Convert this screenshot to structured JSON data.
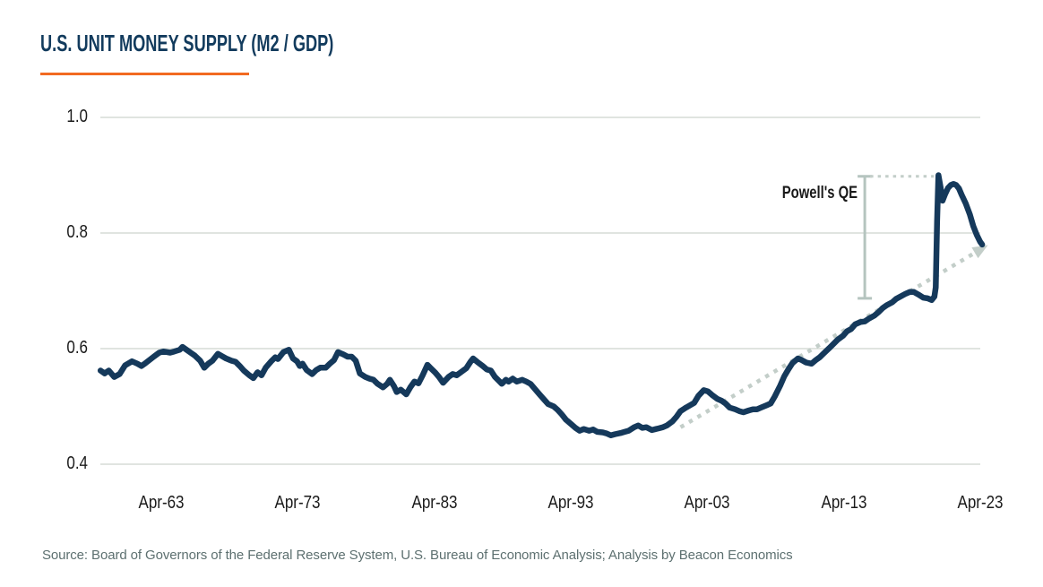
{
  "header": {
    "title": "U.S. UNIT MONEY SUPPLY (M2 / GDP)",
    "accent_color": "#F26A21",
    "title_color": "#123B5D"
  },
  "footer": {
    "source_note": "Source: Board of Governors of the Federal Reserve System, U.S. Bureau of Economic Analysis; Analysis by Beacon Economics"
  },
  "colors": {
    "series_line": "#15395B",
    "gridline": "#D6DBD6",
    "trendline": "#C3CEC9",
    "bracket": "#B5C4BF",
    "tick_text": "#1B1B1B",
    "source_text": "#5D7070"
  },
  "chart_data": {
    "type": "line",
    "title": "U.S. UNIT MONEY SUPPLY (M2 / GDP)",
    "xlabel": "",
    "ylabel": "",
    "ylim": [
      0.4,
      1.0
    ],
    "xlim_years": [
      1958.8,
      2023.8
    ],
    "grid": "horizontal",
    "legend": "none",
    "yticks": [
      {
        "value": 1.0,
        "label": "1.0"
      },
      {
        "value": 0.8,
        "label": "0.8"
      },
      {
        "value": 0.6,
        "label": "0.6"
      },
      {
        "value": 0.4,
        "label": "0.4"
      }
    ],
    "xticks": [
      {
        "year": 1963.25,
        "label": "Apr-63"
      },
      {
        "year": 1973.25,
        "label": "Apr-73"
      },
      {
        "year": 1983.25,
        "label": "Apr-83"
      },
      {
        "year": 1993.25,
        "label": "Apr-93"
      },
      {
        "year": 2003.25,
        "label": "Apr-03"
      },
      {
        "year": 2013.25,
        "label": "Apr-13"
      },
      {
        "year": 2023.25,
        "label": "Apr-23"
      }
    ],
    "annotation": {
      "label": "Powell's QE",
      "bracket": {
        "year": 2014.8,
        "value_from": 0.687,
        "value_to": 0.898
      },
      "connector": {
        "value": 0.898,
        "year_from": 2014.8,
        "year_to": 2019.85
      }
    },
    "trendline": {
      "style": "dotted",
      "arrow": true,
      "from": [
        2001.3,
        0.464
      ],
      "to": [
        2023.6,
        0.776
      ]
    },
    "series": [
      {
        "name": "M2 / GDP",
        "points": [
          [
            1958.8,
            0.562
          ],
          [
            1959.1,
            0.557
          ],
          [
            1959.4,
            0.562
          ],
          [
            1959.8,
            0.551
          ],
          [
            1960.2,
            0.556
          ],
          [
            1960.6,
            0.571
          ],
          [
            1961.1,
            0.578
          ],
          [
            1961.5,
            0.574
          ],
          [
            1961.8,
            0.57
          ],
          [
            1962.1,
            0.575
          ],
          [
            1962.7,
            0.586
          ],
          [
            1963.1,
            0.593
          ],
          [
            1963.4,
            0.595
          ],
          [
            1963.9,
            0.593
          ],
          [
            1964.2,
            0.595
          ],
          [
            1964.6,
            0.598
          ],
          [
            1964.8,
            0.603
          ],
          [
            1965.1,
            0.598
          ],
          [
            1965.4,
            0.593
          ],
          [
            1965.7,
            0.588
          ],
          [
            1966.1,
            0.579
          ],
          [
            1966.4,
            0.567
          ],
          [
            1966.7,
            0.574
          ],
          [
            1967.0,
            0.579
          ],
          [
            1967.4,
            0.591
          ],
          [
            1967.7,
            0.587
          ],
          [
            1968.0,
            0.583
          ],
          [
            1968.4,
            0.579
          ],
          [
            1968.7,
            0.577
          ],
          [
            1969.0,
            0.57
          ],
          [
            1969.3,
            0.562
          ],
          [
            1969.7,
            0.554
          ],
          [
            1970.0,
            0.549
          ],
          [
            1970.3,
            0.559
          ],
          [
            1970.6,
            0.554
          ],
          [
            1970.9,
            0.567
          ],
          [
            1971.3,
            0.578
          ],
          [
            1971.6,
            0.585
          ],
          [
            1971.8,
            0.582
          ],
          [
            1972.0,
            0.588
          ],
          [
            1972.2,
            0.594
          ],
          [
            1972.6,
            0.598
          ],
          [
            1972.9,
            0.583
          ],
          [
            1973.2,
            0.578
          ],
          [
            1973.4,
            0.57
          ],
          [
            1973.6,
            0.574
          ],
          [
            1973.9,
            0.563
          ],
          [
            1974.3,
            0.556
          ],
          [
            1974.6,
            0.563
          ],
          [
            1974.9,
            0.567
          ],
          [
            1975.3,
            0.567
          ],
          [
            1975.6,
            0.574
          ],
          [
            1975.9,
            0.58
          ],
          [
            1976.2,
            0.594
          ],
          [
            1976.6,
            0.59
          ],
          [
            1976.9,
            0.586
          ],
          [
            1977.2,
            0.586
          ],
          [
            1977.5,
            0.579
          ],
          [
            1977.8,
            0.557
          ],
          [
            1978.2,
            0.551
          ],
          [
            1978.5,
            0.548
          ],
          [
            1978.8,
            0.546
          ],
          [
            1979.1,
            0.539
          ],
          [
            1979.5,
            0.533
          ],
          [
            1979.8,
            0.539
          ],
          [
            1980.0,
            0.546
          ],
          [
            1980.3,
            0.535
          ],
          [
            1980.5,
            0.525
          ],
          [
            1980.8,
            0.529
          ],
          [
            1981.2,
            0.521
          ],
          [
            1981.5,
            0.533
          ],
          [
            1981.8,
            0.543
          ],
          [
            1982.1,
            0.54
          ],
          [
            1982.4,
            0.554
          ],
          [
            1982.75,
            0.572
          ],
          [
            1983.0,
            0.566
          ],
          [
            1983.3,
            0.559
          ],
          [
            1983.6,
            0.551
          ],
          [
            1983.9,
            0.541
          ],
          [
            1984.3,
            0.551
          ],
          [
            1984.6,
            0.556
          ],
          [
            1984.9,
            0.554
          ],
          [
            1985.2,
            0.559
          ],
          [
            1985.6,
            0.566
          ],
          [
            1985.9,
            0.577
          ],
          [
            1986.1,
            0.583
          ],
          [
            1986.4,
            0.577
          ],
          [
            1986.8,
            0.57
          ],
          [
            1987.1,
            0.564
          ],
          [
            1987.4,
            0.562
          ],
          [
            1987.7,
            0.551
          ],
          [
            1988.0,
            0.544
          ],
          [
            1988.2,
            0.539
          ],
          [
            1988.5,
            0.546
          ],
          [
            1988.7,
            0.543
          ],
          [
            1989.0,
            0.548
          ],
          [
            1989.3,
            0.543
          ],
          [
            1989.7,
            0.546
          ],
          [
            1990.0,
            0.543
          ],
          [
            1990.3,
            0.539
          ],
          [
            1990.6,
            0.531
          ],
          [
            1991.0,
            0.52
          ],
          [
            1991.3,
            0.512
          ],
          [
            1991.6,
            0.504
          ],
          [
            1992.0,
            0.5
          ],
          [
            1992.3,
            0.494
          ],
          [
            1992.6,
            0.486
          ],
          [
            1992.9,
            0.477
          ],
          [
            1993.3,
            0.469
          ],
          [
            1993.6,
            0.463
          ],
          [
            1993.9,
            0.458
          ],
          [
            1994.2,
            0.461
          ],
          [
            1994.6,
            0.458
          ],
          [
            1994.9,
            0.46
          ],
          [
            1995.2,
            0.456
          ],
          [
            1995.6,
            0.455
          ],
          [
            1995.9,
            0.453
          ],
          [
            1996.2,
            0.45
          ],
          [
            1996.5,
            0.452
          ],
          [
            1996.9,
            0.454
          ],
          [
            1997.2,
            0.456
          ],
          [
            1997.5,
            0.458
          ],
          [
            1997.9,
            0.464
          ],
          [
            1998.2,
            0.467
          ],
          [
            1998.5,
            0.463
          ],
          [
            1998.8,
            0.464
          ],
          [
            1999.2,
            0.459
          ],
          [
            1999.5,
            0.461
          ],
          [
            1999.7,
            0.462
          ],
          [
            2000.0,
            0.464
          ],
          [
            2000.3,
            0.467
          ],
          [
            2000.7,
            0.474
          ],
          [
            2001.0,
            0.482
          ],
          [
            2001.3,
            0.492
          ],
          [
            2001.7,
            0.498
          ],
          [
            2002.0,
            0.502
          ],
          [
            2002.3,
            0.506
          ],
          [
            2002.6,
            0.518
          ],
          [
            2003.0,
            0.528
          ],
          [
            2003.3,
            0.526
          ],
          [
            2003.6,
            0.52
          ],
          [
            2004.0,
            0.513
          ],
          [
            2004.3,
            0.51
          ],
          [
            2004.6,
            0.505
          ],
          [
            2004.9,
            0.498
          ],
          [
            2005.3,
            0.495
          ],
          [
            2005.6,
            0.492
          ],
          [
            2005.9,
            0.49
          ],
          [
            2006.3,
            0.493
          ],
          [
            2006.6,
            0.495
          ],
          [
            2006.9,
            0.495
          ],
          [
            2007.2,
            0.498
          ],
          [
            2007.6,
            0.502
          ],
          [
            2007.9,
            0.505
          ],
          [
            2008.2,
            0.517
          ],
          [
            2008.6,
            0.536
          ],
          [
            2008.9,
            0.552
          ],
          [
            2009.2,
            0.564
          ],
          [
            2009.5,
            0.575
          ],
          [
            2009.9,
            0.583
          ],
          [
            2010.2,
            0.58
          ],
          [
            2010.5,
            0.576
          ],
          [
            2010.9,
            0.574
          ],
          [
            2011.2,
            0.58
          ],
          [
            2011.5,
            0.585
          ],
          [
            2011.8,
            0.592
          ],
          [
            2012.2,
            0.601
          ],
          [
            2012.5,
            0.608
          ],
          [
            2012.8,
            0.615
          ],
          [
            2013.2,
            0.622
          ],
          [
            2013.5,
            0.63
          ],
          [
            2013.8,
            0.634
          ],
          [
            2014.1,
            0.642
          ],
          [
            2014.5,
            0.646
          ],
          [
            2014.8,
            0.647
          ],
          [
            2015.1,
            0.652
          ],
          [
            2015.5,
            0.657
          ],
          [
            2015.8,
            0.663
          ],
          [
            2016.1,
            0.67
          ],
          [
            2016.4,
            0.675
          ],
          [
            2016.8,
            0.68
          ],
          [
            2017.1,
            0.686
          ],
          [
            2017.4,
            0.69
          ],
          [
            2017.8,
            0.695
          ],
          [
            2018.1,
            0.698
          ],
          [
            2018.4,
            0.698
          ],
          [
            2018.7,
            0.694
          ],
          [
            2019.1,
            0.688
          ],
          [
            2019.4,
            0.687
          ],
          [
            2019.7,
            0.684
          ],
          [
            2019.9,
            0.69
          ],
          [
            2020.0,
            0.706
          ],
          [
            2020.1,
            0.82
          ],
          [
            2020.2,
            0.9
          ],
          [
            2020.35,
            0.88
          ],
          [
            2020.5,
            0.856
          ],
          [
            2020.7,
            0.868
          ],
          [
            2020.9,
            0.878
          ],
          [
            2021.1,
            0.883
          ],
          [
            2021.3,
            0.885
          ],
          [
            2021.5,
            0.883
          ],
          [
            2021.7,
            0.877
          ],
          [
            2021.9,
            0.866
          ],
          [
            2022.2,
            0.851
          ],
          [
            2022.5,
            0.832
          ],
          [
            2022.75,
            0.812
          ],
          [
            2023.0,
            0.797
          ],
          [
            2023.25,
            0.785
          ],
          [
            2023.4,
            0.78
          ]
        ]
      }
    ]
  }
}
